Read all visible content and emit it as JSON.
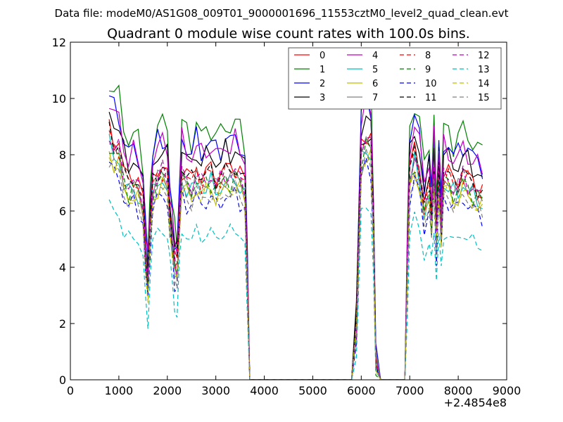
{
  "chart_data": {
    "type": "line",
    "suptitle": "Data file: modeM0/AS1G08_009T01_9000001696_11553cztM0_level2_quad_clean.evt",
    "title": "Quadrant 0 module wise count rates with 100.0s bins.",
    "xlabel": "",
    "ylabel": "",
    "x_offset_label": "+2.4854e8",
    "xlim": [
      0,
      9000
    ],
    "ylim": [
      0,
      12
    ],
    "xticks": [
      0,
      1000,
      2000,
      3000,
      4000,
      5000,
      6000,
      7000,
      8000,
      9000
    ],
    "yticks": [
      0,
      2,
      4,
      6,
      8,
      10,
      12
    ],
    "grid": false,
    "legend_position": "top-right",
    "legend_columns": 4,
    "series": [
      {
        "name": "0",
        "color": "#ff0000",
        "dash": "solid",
        "scale": 0.86,
        "phase": 1,
        "dip": 0.0
      },
      {
        "name": "1",
        "color": "#008000",
        "dash": "solid",
        "scale": 1.03,
        "phase": 2,
        "dip": 0.0
      },
      {
        "name": "2",
        "color": "#0000ff",
        "dash": "solid",
        "scale": 0.97,
        "phase": 3,
        "dip": 0.0
      },
      {
        "name": "3",
        "color": "#000000",
        "dash": "solid",
        "scale": 0.92,
        "phase": 4,
        "dip": 0.0
      },
      {
        "name": "4",
        "color": "#bf00bf",
        "dash": "solid",
        "scale": 0.95,
        "phase": 5,
        "dip": 0.0
      },
      {
        "name": "5",
        "color": "#00bfbf",
        "dash": "solid",
        "scale": 0.8,
        "phase": 6,
        "dip": 0.3
      },
      {
        "name": "6",
        "color": "#bfbf00",
        "dash": "solid",
        "scale": 0.78,
        "phase": 7,
        "dip": 0.2
      },
      {
        "name": "7",
        "color": "#808080",
        "dash": "solid",
        "scale": 0.82,
        "phase": 8,
        "dip": 0.1
      },
      {
        "name": "8",
        "color": "#ff0000",
        "dash": "dashed",
        "scale": 0.84,
        "phase": 9,
        "dip": 0.2
      },
      {
        "name": "9",
        "color": "#008000",
        "dash": "dashed",
        "scale": 0.81,
        "phase": 10,
        "dip": 0.3
      },
      {
        "name": "10",
        "color": "#0000ff",
        "dash": "dashed",
        "scale": 0.74,
        "phase": 11,
        "dip": 0.4
      },
      {
        "name": "11",
        "color": "#000000",
        "dash": "dashed",
        "scale": 0.85,
        "phase": 12,
        "dip": 0.1
      },
      {
        "name": "12",
        "color": "#bf00bf",
        "dash": "dashed",
        "scale": 0.83,
        "phase": 13,
        "dip": 0.2
      },
      {
        "name": "13",
        "color": "#00bfbf",
        "dash": "dashed",
        "scale": 0.6,
        "phase": 14,
        "dip": 0.6
      },
      {
        "name": "14",
        "color": "#bfbf00",
        "dash": "dashed",
        "scale": 0.77,
        "phase": 15,
        "dip": 0.3
      },
      {
        "name": "15",
        "color": "#808080",
        "dash": "dashed",
        "scale": 0.76,
        "phase": 16,
        "dip": 0.3
      }
    ],
    "base_profile": {
      "x": [
        800,
        900,
        1000,
        1100,
        1200,
        1300,
        1400,
        1500,
        1550,
        1600,
        1650,
        1700,
        1800,
        1900,
        2000,
        2050,
        2100,
        2150,
        2200,
        2250,
        2300,
        2400,
        2500,
        2600,
        2700,
        2800,
        2900,
        3000,
        3100,
        3200,
        3300,
        3400,
        3500,
        3600,
        3650,
        3700,
        3800,
        4000,
        5000,
        5800,
        5900,
        6000,
        6100,
        6200,
        6250,
        6300,
        6400,
        6500,
        6800,
        6900,
        6950,
        7000,
        7100,
        7200,
        7300,
        7400,
        7450,
        7500,
        7550,
        7600,
        7650,
        7700,
        7800,
        7900,
        8000,
        8100,
        8200,
        8300,
        8400,
        8500
      ],
      "y": [
        10.4,
        9.9,
        9.8,
        8.7,
        8.3,
        8.5,
        8.2,
        7.5,
        5.5,
        4.3,
        6.5,
        8.2,
        8.7,
        8.9,
        8.6,
        7.0,
        6.0,
        5.2,
        4.9,
        6.8,
        8.9,
        8.5,
        8.3,
        8.8,
        8.4,
        8.6,
        8.7,
        8.4,
        8.5,
        8.8,
        8.7,
        8.9,
        8.6,
        8.2,
        4.5,
        0.0,
        0.0,
        0.0,
        0.0,
        0.0,
        2.5,
        9.7,
        10.3,
        10.0,
        6.5,
        1.0,
        0.0,
        0.0,
        0.0,
        0.0,
        5.0,
        8.7,
        9.6,
        8.9,
        7.3,
        8.2,
        6.8,
        9.0,
        6.0,
        8.7,
        6.3,
        8.7,
        8.6,
        8.2,
        8.3,
        8.7,
        8.4,
        8.2,
        8.0,
        7.8
      ]
    }
  }
}
